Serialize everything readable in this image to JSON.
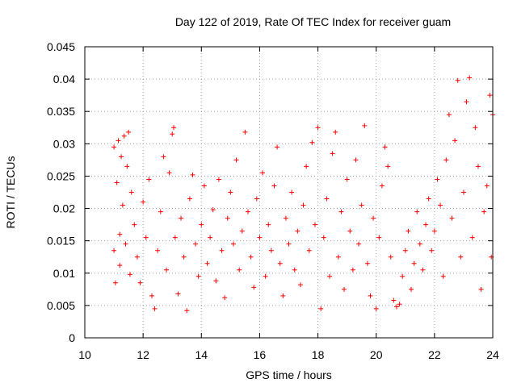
{
  "chart_data": {
    "type": "scatter",
    "title": "Day 122 of 2019, Rate Of TEC Index for receiver guam",
    "xlabel": "GPS time / hours",
    "ylabel": "ROTI / TECUs",
    "xlim": [
      10,
      24
    ],
    "ylim": [
      0,
      0.045
    ],
    "x_ticks": [
      10,
      12,
      14,
      16,
      18,
      20,
      22,
      24
    ],
    "y_ticks": [
      0,
      0.005,
      0.01,
      0.015,
      0.02,
      0.025,
      0.03,
      0.035,
      0.04,
      0.045
    ],
    "x_tick_labels": [
      "10",
      "12",
      "14",
      "16",
      "18",
      "20",
      "22",
      "24"
    ],
    "y_tick_labels": [
      "0",
      "0.005",
      "0.01",
      "0.015",
      "0.02",
      "0.025",
      "0.03",
      "0.035",
      "0.04",
      "0.045"
    ],
    "grid": true,
    "marker": "plus",
    "color": "#ff0000",
    "series": [
      {
        "points": [
          [
            11.0,
            0.0295
          ],
          [
            11.0,
            0.0135
          ],
          [
            11.05,
            0.0085
          ],
          [
            11.1,
            0.024
          ],
          [
            11.15,
            0.0305
          ],
          [
            11.2,
            0.016
          ],
          [
            11.2,
            0.0112
          ],
          [
            11.25,
            0.028
          ],
          [
            11.3,
            0.0205
          ],
          [
            11.35,
            0.0312
          ],
          [
            11.4,
            0.0145
          ],
          [
            11.45,
            0.0265
          ],
          [
            11.5,
            0.0318
          ],
          [
            11.55,
            0.0098
          ],
          [
            11.6,
            0.0225
          ],
          [
            11.7,
            0.0175
          ],
          [
            11.8,
            0.0125
          ],
          [
            11.9,
            0.0085
          ],
          [
            12.0,
            0.021
          ],
          [
            12.1,
            0.0155
          ],
          [
            12.2,
            0.0245
          ],
          [
            12.3,
            0.0065
          ],
          [
            12.4,
            0.0045
          ],
          [
            12.5,
            0.0135
          ],
          [
            12.6,
            0.0195
          ],
          [
            12.7,
            0.028
          ],
          [
            12.8,
            0.0105
          ],
          [
            12.9,
            0.0255
          ],
          [
            13.0,
            0.0315
          ],
          [
            13.05,
            0.0325
          ],
          [
            13.1,
            0.0155
          ],
          [
            13.2,
            0.0068
          ],
          [
            13.3,
            0.0185
          ],
          [
            13.4,
            0.0125
          ],
          [
            13.5,
            0.0042
          ],
          [
            13.6,
            0.0215
          ],
          [
            13.7,
            0.0252
          ],
          [
            13.8,
            0.0145
          ],
          [
            13.9,
            0.0095
          ],
          [
            14.0,
            0.0175
          ],
          [
            14.1,
            0.0235
          ],
          [
            14.2,
            0.0115
          ],
          [
            14.3,
            0.0155
          ],
          [
            14.4,
            0.0198
          ],
          [
            14.5,
            0.0088
          ],
          [
            14.6,
            0.0245
          ],
          [
            14.7,
            0.0135
          ],
          [
            14.8,
            0.0062
          ],
          [
            14.9,
            0.0185
          ],
          [
            15.0,
            0.0225
          ],
          [
            15.1,
            0.0145
          ],
          [
            15.2,
            0.0275
          ],
          [
            15.3,
            0.0105
          ],
          [
            15.4,
            0.0165
          ],
          [
            15.5,
            0.0318
          ],
          [
            15.6,
            0.0195
          ],
          [
            15.7,
            0.0125
          ],
          [
            15.8,
            0.0078
          ],
          [
            15.9,
            0.0215
          ],
          [
            16.0,
            0.0155
          ],
          [
            16.1,
            0.0255
          ],
          [
            16.2,
            0.0095
          ],
          [
            16.3,
            0.0175
          ],
          [
            16.4,
            0.0135
          ],
          [
            16.5,
            0.0235
          ],
          [
            16.6,
            0.0295
          ],
          [
            16.7,
            0.0115
          ],
          [
            16.8,
            0.0065
          ],
          [
            16.9,
            0.0185
          ],
          [
            17.0,
            0.0145
          ],
          [
            17.1,
            0.0225
          ],
          [
            17.2,
            0.0105
          ],
          [
            17.3,
            0.0165
          ],
          [
            17.4,
            0.0082
          ],
          [
            17.5,
            0.0205
          ],
          [
            17.6,
            0.0265
          ],
          [
            17.7,
            0.0135
          ],
          [
            17.8,
            0.0302
          ],
          [
            17.9,
            0.0175
          ],
          [
            18.0,
            0.0325
          ],
          [
            18.1,
            0.0045
          ],
          [
            18.2,
            0.0155
          ],
          [
            18.3,
            0.0215
          ],
          [
            18.4,
            0.0095
          ],
          [
            18.5,
            0.0285
          ],
          [
            18.6,
            0.0318
          ],
          [
            18.7,
            0.0125
          ],
          [
            18.8,
            0.0195
          ],
          [
            18.9,
            0.0075
          ],
          [
            19.0,
            0.0245
          ],
          [
            19.1,
            0.0165
          ],
          [
            19.2,
            0.0105
          ],
          [
            19.3,
            0.0275
          ],
          [
            19.4,
            0.0145
          ],
          [
            19.5,
            0.0205
          ],
          [
            19.6,
            0.0328
          ],
          [
            19.7,
            0.0115
          ],
          [
            19.8,
            0.0065
          ],
          [
            19.9,
            0.0185
          ],
          [
            20.0,
            0.0045
          ],
          [
            20.1,
            0.0155
          ],
          [
            20.2,
            0.0235
          ],
          [
            20.3,
            0.0295
          ],
          [
            20.4,
            0.0265
          ],
          [
            20.5,
            0.0125
          ],
          [
            20.6,
            0.0058
          ],
          [
            20.7,
            0.0048
          ],
          [
            20.8,
            0.0052
          ],
          [
            20.9,
            0.0095
          ],
          [
            21.0,
            0.0135
          ],
          [
            21.1,
            0.0165
          ],
          [
            21.2,
            0.0075
          ],
          [
            21.3,
            0.0115
          ],
          [
            21.4,
            0.0195
          ],
          [
            21.5,
            0.0145
          ],
          [
            21.6,
            0.0105
          ],
          [
            21.7,
            0.0175
          ],
          [
            21.8,
            0.0215
          ],
          [
            21.9,
            0.0135
          ],
          [
            22.0,
            0.0165
          ],
          [
            22.1,
            0.0245
          ],
          [
            22.2,
            0.0205
          ],
          [
            22.3,
            0.0095
          ],
          [
            22.4,
            0.0275
          ],
          [
            22.5,
            0.0345
          ],
          [
            22.6,
            0.0185
          ],
          [
            22.7,
            0.0305
          ],
          [
            22.8,
            0.0398
          ],
          [
            22.9,
            0.0125
          ],
          [
            23.0,
            0.0225
          ],
          [
            23.1,
            0.0365
          ],
          [
            23.2,
            0.0402
          ],
          [
            23.3,
            0.0155
          ],
          [
            23.4,
            0.0325
          ],
          [
            23.5,
            0.0265
          ],
          [
            23.6,
            0.0075
          ],
          [
            23.7,
            0.0195
          ],
          [
            23.8,
            0.0235
          ],
          [
            23.9,
            0.0375
          ],
          [
            24.0,
            0.0345
          ],
          [
            23.95,
            0.0125
          ]
        ]
      }
    ]
  }
}
